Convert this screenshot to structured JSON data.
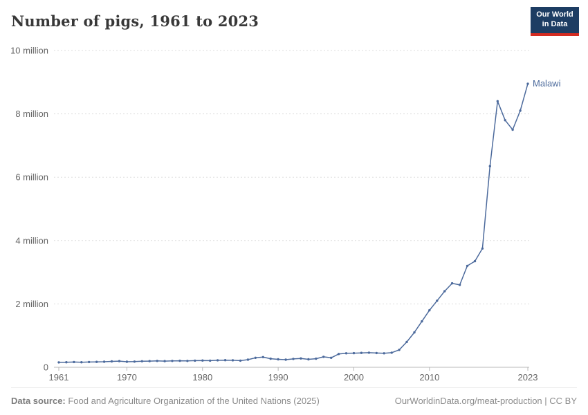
{
  "header": {
    "title": "Number of pigs, 1961 to 2023",
    "logo": {
      "line1": "Our World",
      "line2": "in Data"
    }
  },
  "chart_data": {
    "type": "line",
    "title": "Number of pigs, 1961 to 2023",
    "unit": "pigs",
    "grid": "horizontal-dashed",
    "legend_position": "end-of-line-label",
    "xlim": [
      1961,
      2023
    ],
    "ylim": [
      0,
      10000000
    ],
    "xticks": [
      1961,
      1970,
      1980,
      1990,
      2000,
      2010,
      2023
    ],
    "yticks": [
      {
        "value": 0,
        "label": "0"
      },
      {
        "value": 2000000,
        "label": "2 million"
      },
      {
        "value": 4000000,
        "label": "4 million"
      },
      {
        "value": 6000000,
        "label": "6 million"
      },
      {
        "value": 8000000,
        "label": "8 million"
      },
      {
        "value": 10000000,
        "label": "10 million"
      }
    ],
    "x": [
      1961,
      1962,
      1963,
      1964,
      1965,
      1966,
      1967,
      1968,
      1969,
      1970,
      1971,
      1972,
      1973,
      1974,
      1975,
      1976,
      1977,
      1978,
      1979,
      1980,
      1981,
      1982,
      1983,
      1984,
      1985,
      1986,
      1987,
      1988,
      1989,
      1990,
      1991,
      1992,
      1993,
      1994,
      1995,
      1996,
      1997,
      1998,
      1999,
      2000,
      2001,
      2002,
      2003,
      2004,
      2005,
      2006,
      2007,
      2008,
      2009,
      2010,
      2011,
      2012,
      2013,
      2014,
      2015,
      2016,
      2017,
      2018,
      2019,
      2020,
      2021,
      2022,
      2023
    ],
    "series": [
      {
        "name": "Malawi",
        "values": [
          155000,
          160000,
          165000,
          160000,
          165000,
          170000,
          175000,
          185000,
          195000,
          175000,
          180000,
          190000,
          195000,
          200000,
          195000,
          200000,
          205000,
          200000,
          210000,
          215000,
          210000,
          220000,
          225000,
          220000,
          210000,
          240000,
          300000,
          320000,
          270000,
          250000,
          240000,
          265000,
          280000,
          250000,
          270000,
          330000,
          300000,
          420000,
          440000,
          445000,
          455000,
          460000,
          450000,
          440000,
          460000,
          550000,
          800000,
          1100000,
          1450000,
          1800000,
          2100000,
          2400000,
          2650000,
          2600000,
          3200000,
          3350000,
          3750000,
          6350000,
          8400000,
          7800000,
          7500000,
          8100000,
          8950000
        ]
      }
    ]
  },
  "footer": {
    "source_label": "Data source:",
    "source_text": " Food and Agriculture Organization of the United Nations (2025)",
    "credit": "OurWorldinData.org/meat-production | CC BY"
  },
  "colors": {
    "line": "#4c6a9c",
    "grid": "#dddddd",
    "axis": "#b8b8b8",
    "tick_text": "#666666",
    "title_text": "#383838",
    "footer_text": "#8b8b8b",
    "logo_bg": "#1d3d63",
    "logo_bar": "#d42b21"
  }
}
